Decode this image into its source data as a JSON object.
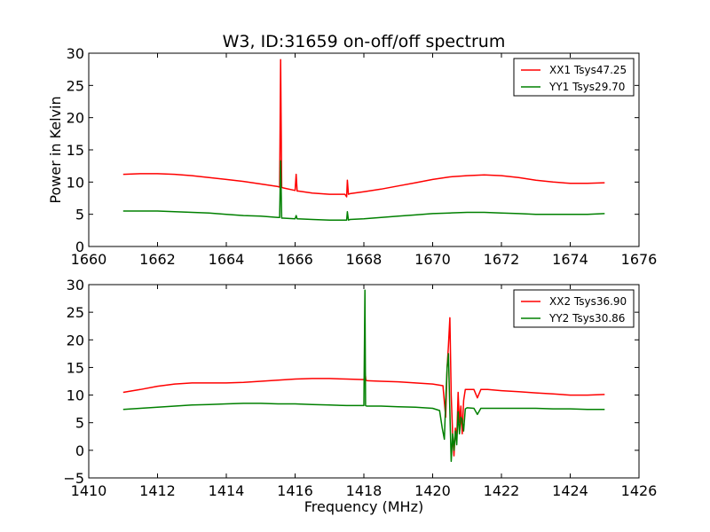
{
  "chart_data": [
    {
      "type": "line",
      "title": "W3, ID:31659 on-off/off spectrum",
      "xlabel": "",
      "ylabel": "Power in Kelvin",
      "xlim": [
        1660,
        1676
      ],
      "ylim": [
        0,
        30
      ],
      "xticks": [
        "1660",
        "1662",
        "1664",
        "1666",
        "1668",
        "1670",
        "1672",
        "1674",
        "1676"
      ],
      "yticks": [
        "0",
        "5",
        "10",
        "15",
        "20",
        "25",
        "30"
      ],
      "grid": false,
      "legend_position": "top-right",
      "series": [
        {
          "name": "XX1 Tsys47.25",
          "color": "#ff0000",
          "x": [
            1661.0,
            1661.5,
            1662.0,
            1662.5,
            1663.0,
            1663.5,
            1664.0,
            1664.5,
            1665.0,
            1665.5,
            1665.55,
            1665.58,
            1665.61,
            1665.65,
            1666.0,
            1666.03,
            1666.06,
            1666.1,
            1666.5,
            1667.0,
            1667.45,
            1667.5,
            1667.52,
            1667.55,
            1667.6,
            1668.0,
            1668.5,
            1669.0,
            1669.5,
            1670.0,
            1670.5,
            1671.0,
            1671.5,
            1672.0,
            1672.5,
            1673.0,
            1673.5,
            1674.0,
            1674.5,
            1675.0
          ],
          "y": [
            11.2,
            11.3,
            11.3,
            11.2,
            11.0,
            10.7,
            10.4,
            10.1,
            9.7,
            9.3,
            9.2,
            29.0,
            9.2,
            9.1,
            8.7,
            11.2,
            8.6,
            8.6,
            8.3,
            8.1,
            8.1,
            7.7,
            10.3,
            8.1,
            8.2,
            8.5,
            8.9,
            9.4,
            9.9,
            10.4,
            10.8,
            11.0,
            11.1,
            11.0,
            10.7,
            10.3,
            10.0,
            9.8,
            9.8,
            9.9
          ]
        },
        {
          "name": "YY1 Tsys29.70",
          "color": "#008000",
          "x": [
            1661.0,
            1661.5,
            1662.0,
            1662.5,
            1663.0,
            1663.5,
            1664.0,
            1664.5,
            1665.0,
            1665.5,
            1665.55,
            1665.58,
            1665.61,
            1665.65,
            1666.0,
            1666.03,
            1666.06,
            1666.5,
            1667.0,
            1667.5,
            1667.52,
            1667.55,
            1667.6,
            1668.0,
            1668.5,
            1669.0,
            1669.5,
            1670.0,
            1670.5,
            1671.0,
            1671.5,
            1672.0,
            1672.5,
            1673.0,
            1673.5,
            1674.0,
            1674.5,
            1675.0
          ],
          "y": [
            5.5,
            5.5,
            5.5,
            5.4,
            5.3,
            5.2,
            5.0,
            4.8,
            4.7,
            4.5,
            4.5,
            13.3,
            4.4,
            4.4,
            4.3,
            4.8,
            4.3,
            4.2,
            4.1,
            4.1,
            5.4,
            4.1,
            4.2,
            4.3,
            4.5,
            4.7,
            4.9,
            5.1,
            5.2,
            5.3,
            5.3,
            5.2,
            5.1,
            5.0,
            5.0,
            5.0,
            5.0,
            5.1
          ]
        }
      ]
    },
    {
      "type": "line",
      "title": "",
      "xlabel": "Frequency (MHz)",
      "ylabel": "",
      "xlim": [
        1410,
        1426
      ],
      "ylim": [
        -5,
        30
      ],
      "xticks": [
        "1410",
        "1412",
        "1414",
        "1416",
        "1418",
        "1420",
        "1422",
        "1424",
        "1426"
      ],
      "yticks": [
        "−5",
        "0",
        "5",
        "10",
        "15",
        "20",
        "25",
        "30"
      ],
      "grid": false,
      "legend_position": "top-right",
      "series": [
        {
          "name": "XX2 Tsys36.90",
          "color": "#ff0000",
          "x": [
            1411.0,
            1411.5,
            1412.0,
            1412.5,
            1413.0,
            1413.5,
            1414.0,
            1414.5,
            1415.0,
            1415.5,
            1416.0,
            1416.5,
            1417.0,
            1417.5,
            1418.0,
            1418.04,
            1418.06,
            1418.1,
            1418.5,
            1419.0,
            1419.5,
            1420.0,
            1420.3,
            1420.38,
            1420.42,
            1420.46,
            1420.5,
            1420.54,
            1420.58,
            1420.62,
            1420.66,
            1420.7,
            1420.74,
            1420.78,
            1420.82,
            1420.86,
            1420.9,
            1420.95,
            1421.0,
            1421.2,
            1421.3,
            1421.4,
            1421.6,
            1422.0,
            1422.5,
            1423.0,
            1423.5,
            1424.0,
            1424.5,
            1425.0
          ],
          "y": [
            10.5,
            11.0,
            11.6,
            12.0,
            12.2,
            12.2,
            12.2,
            12.3,
            12.5,
            12.7,
            12.9,
            13.0,
            13.0,
            12.9,
            12.8,
            14.0,
            12.7,
            12.6,
            12.5,
            12.4,
            12.2,
            12.0,
            11.7,
            6.0,
            15.0,
            19.0,
            24.0,
            10.0,
            3.0,
            -1.0,
            4.0,
            2.0,
            10.5,
            5.0,
            8.0,
            3.0,
            9.0,
            11.0,
            11.0,
            11.0,
            9.5,
            11.0,
            11.0,
            10.8,
            10.6,
            10.4,
            10.2,
            10.0,
            10.0,
            10.1
          ]
        },
        {
          "name": "YY2 Tsys30.86",
          "color": "#008000",
          "x": [
            1411.0,
            1411.5,
            1412.0,
            1412.5,
            1413.0,
            1413.5,
            1414.0,
            1414.5,
            1415.0,
            1415.5,
            1416.0,
            1416.5,
            1417.0,
            1417.5,
            1418.0,
            1418.03,
            1418.05,
            1418.08,
            1418.5,
            1419.0,
            1419.5,
            1420.0,
            1420.2,
            1420.28,
            1420.34,
            1420.38,
            1420.42,
            1420.46,
            1420.5,
            1420.54,
            1420.58,
            1420.62,
            1420.66,
            1420.7,
            1420.74,
            1420.78,
            1420.82,
            1420.86,
            1420.9,
            1420.95,
            1421.0,
            1421.2,
            1421.3,
            1421.4,
            1421.6,
            1422.0,
            1422.5,
            1423.0,
            1423.5,
            1424.0,
            1424.5,
            1425.0
          ],
          "y": [
            7.4,
            7.6,
            7.8,
            8.0,
            8.2,
            8.3,
            8.4,
            8.5,
            8.5,
            8.4,
            8.4,
            8.3,
            8.2,
            8.1,
            8.1,
            29.0,
            8.1,
            8.0,
            8.0,
            7.9,
            7.8,
            7.6,
            7.2,
            4.0,
            2.0,
            9.0,
            15.0,
            17.5,
            7.0,
            -2.0,
            3.0,
            0.0,
            3.5,
            1.0,
            7.0,
            3.0,
            6.0,
            5.5,
            3.5,
            7.5,
            7.7,
            7.6,
            6.5,
            7.6,
            7.6,
            7.6,
            7.6,
            7.6,
            7.5,
            7.5,
            7.4,
            7.4
          ]
        }
      ]
    }
  ]
}
